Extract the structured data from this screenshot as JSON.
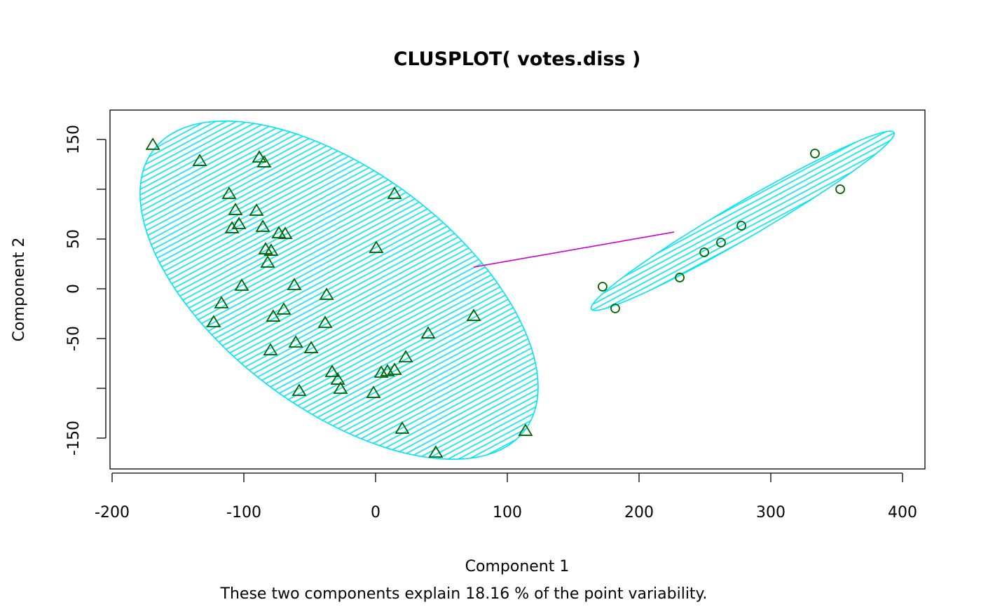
{
  "chart_data": {
    "type": "scatter",
    "title": "CLUSPLOT( votes.diss )",
    "xlabel": "Component 1",
    "ylabel": "Component 2",
    "subtitle": "These two components explain 18.16 % of the point variability.",
    "xlim": [
      -201.6,
      417
    ],
    "ylim": [
      -181,
      179.6
    ],
    "x_ticks": [
      -200,
      -100,
      0,
      100,
      200,
      300,
      400
    ],
    "y_ticks": [
      -150,
      -100,
      -50,
      0,
      50,
      100,
      150
    ],
    "y_tick_labels_shown": [
      -150,
      -50,
      0,
      50,
      150
    ],
    "grid": false,
    "colors": {
      "points": "#006400",
      "ellipse": "#00E5EE",
      "connector": "#CD00CD"
    },
    "clusters": [
      {
        "marker": "triangle",
        "ellipse": {
          "center": [
            -27.7,
            -1.4
          ],
          "axis1": [
            141,
            -140.8
          ],
          "axis2": [
            -54.3,
            -95.1
          ]
        },
        "points": [
          [
            -169.1,
            144.4
          ],
          [
            -133.5,
            128.2
          ],
          [
            -88.3,
            131.7
          ],
          [
            -84.6,
            126.8
          ],
          [
            -111.2,
            95.1
          ],
          [
            14.4,
            95.1
          ],
          [
            -106.4,
            78.9
          ],
          [
            -90.4,
            78.2
          ],
          [
            -103.7,
            64.8
          ],
          [
            -109.0,
            60.6
          ],
          [
            -85.6,
            62.0
          ],
          [
            -73.4,
            55.6
          ],
          [
            -68.6,
            54.9
          ],
          [
            0.5,
            40.8
          ],
          [
            -83.5,
            39.4
          ],
          [
            -79.3,
            38.0
          ],
          [
            -81.9,
            26.1
          ],
          [
            -101.6,
            2.8
          ],
          [
            -61.7,
            3.5
          ],
          [
            -37.2,
            -6.3
          ],
          [
            -117.0,
            -14.8
          ],
          [
            -69.7,
            -21.1
          ],
          [
            -77.7,
            -28.2
          ],
          [
            -122.9,
            -33.8
          ],
          [
            74.5,
            -27.5
          ],
          [
            -38.3,
            -34.5
          ],
          [
            39.9,
            -45.1
          ],
          [
            -60.6,
            -54.2
          ],
          [
            -48.9,
            -59.9
          ],
          [
            -79.8,
            -62.0
          ],
          [
            22.9,
            -69.0
          ],
          [
            -33.0,
            -83.8
          ],
          [
            14.4,
            -81.7
          ],
          [
            9.0,
            -83.1
          ],
          [
            4.3,
            -84.5
          ],
          [
            -28.7,
            -91.5
          ],
          [
            -26.6,
            -100.7
          ],
          [
            -58.0,
            -102.8
          ],
          [
            -1.6,
            -104.9
          ],
          [
            20.2,
            -140.8
          ],
          [
            113.8,
            -143.0
          ],
          [
            45.7,
            -164.8
          ]
        ]
      },
      {
        "marker": "circle",
        "ellipse": {
          "center": [
            278.7,
            68.3
          ],
          "axis1": [
            114.9,
            88.7
          ],
          "axis2": [
            6.4,
            -15.5
          ]
        },
        "points": [
          [
            333.5,
            135.9
          ],
          [
            352.7,
            100.0
          ],
          [
            277.7,
            63.4
          ],
          [
            262.2,
            46.5
          ],
          [
            249.5,
            36.6
          ],
          [
            230.9,
            11.3
          ],
          [
            172.3,
            2.1
          ],
          [
            181.9,
            -19.7
          ]
        ]
      }
    ],
    "connector": [
      [
        74.5,
        21.8
      ],
      [
        226.6,
        57.0
      ]
    ]
  }
}
